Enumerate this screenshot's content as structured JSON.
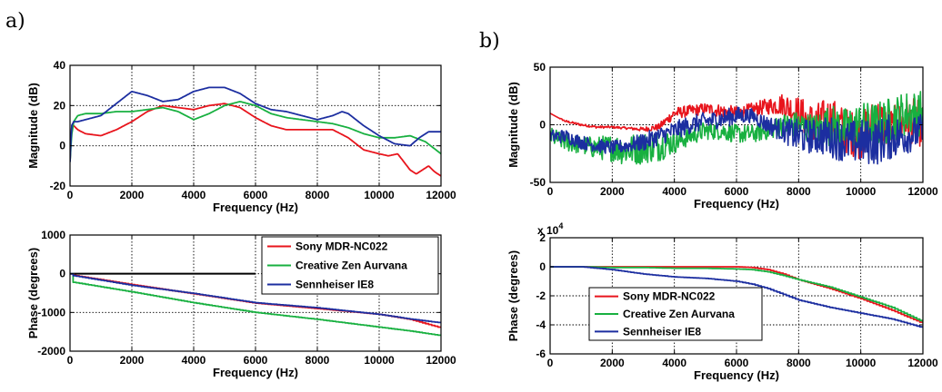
{
  "figure": {
    "panel_labels": [
      "a)",
      "b)"
    ]
  },
  "colors": {
    "Sony MDR-NC022": "#e8141c",
    "Creative Zen Aurvana": "#18b040",
    "Sennheiser IE8": "#1c2ea0"
  },
  "chart_data": [
    {
      "id": "a_mag",
      "panel": "a)",
      "type": "line",
      "xlabel": "Frequency (Hz)",
      "ylabel": "Magnitude (dB)",
      "xlim": [
        0,
        12000
      ],
      "ylim": [
        -20,
        40
      ],
      "xticks": [
        0,
        2000,
        4000,
        6000,
        8000,
        10000,
        12000
      ],
      "yticks": [
        -20,
        0,
        20,
        40
      ],
      "grid": true,
      "legend": false,
      "series": [
        {
          "name": "Sony MDR-NC022",
          "x": [
            0,
            50,
            120,
            250,
            500,
            1000,
            1500,
            2000,
            2500,
            3000,
            3500,
            4000,
            4500,
            5000,
            5500,
            6000,
            6500,
            7000,
            7500,
            8000,
            8500,
            9000,
            9500,
            10000,
            10300,
            10600,
            11000,
            11200,
            11400,
            11600,
            11800,
            12000
          ],
          "y": [
            -8,
            10,
            10,
            8,
            6,
            5,
            8,
            12,
            17,
            20,
            19,
            18,
            20,
            21,
            19,
            14,
            10,
            8,
            8,
            8,
            8,
            4,
            -2,
            -4,
            -5,
            -4,
            -12,
            -14,
            -12,
            -10,
            -13,
            -15
          ]
        },
        {
          "name": "Creative Zen Aurvana",
          "x": [
            0,
            50,
            120,
            250,
            500,
            1000,
            1500,
            2000,
            2500,
            3000,
            3500,
            4000,
            4500,
            5000,
            5500,
            6000,
            6500,
            7000,
            7500,
            8000,
            8500,
            9000,
            9500,
            10000,
            10500,
            11000,
            11500,
            12000
          ],
          "y": [
            -8,
            5,
            12,
            15,
            16,
            16,
            17,
            17,
            18,
            19,
            17,
            13,
            16,
            20,
            22,
            20,
            16,
            14,
            13,
            12,
            11,
            9,
            6,
            4,
            4,
            5,
            2,
            -4
          ]
        },
        {
          "name": "Sennheiser IE8",
          "x": [
            0,
            50,
            120,
            250,
            500,
            1000,
            1500,
            2000,
            2500,
            3000,
            3500,
            4000,
            4500,
            5000,
            5500,
            6000,
            6500,
            7000,
            7500,
            8000,
            8500,
            8800,
            9000,
            9500,
            10000,
            10500,
            11000,
            11300,
            11600,
            12000
          ],
          "y": [
            -8,
            10,
            12,
            12,
            13,
            15,
            21,
            27,
            25,
            22,
            23,
            27,
            29,
            29,
            26,
            21,
            18,
            17,
            15,
            13,
            15,
            17,
            16,
            10,
            5,
            1,
            0,
            4,
            7,
            7
          ]
        }
      ]
    },
    {
      "id": "a_phase",
      "panel": "a)",
      "type": "line",
      "xlabel": "Frequency (Hz)",
      "ylabel": "Phase (degrees)",
      "xlim": [
        0,
        12000
      ],
      "ylim": [
        -2000,
        1000
      ],
      "xticks": [
        0,
        2000,
        4000,
        6000,
        8000,
        10000,
        12000
      ],
      "yticks": [
        -2000,
        -1000,
        0,
        1000
      ],
      "grid": true,
      "legend": "top-right",
      "hline": {
        "y": 0,
        "x0": 0,
        "x1": 6000
      },
      "series": [
        {
          "name": "Sony MDR-NC022",
          "x": [
            0,
            100,
            2000,
            4000,
            6000,
            8000,
            10000,
            11000,
            12000
          ],
          "y": [
            0,
            -40,
            -280,
            -520,
            -760,
            -900,
            -1050,
            -1180,
            -1400
          ]
        },
        {
          "name": "Creative Zen Aurvana",
          "x": [
            0,
            100,
            2000,
            4000,
            6000,
            8000,
            10000,
            11000,
            12000
          ],
          "y": [
            0,
            -220,
            -470,
            -750,
            -1000,
            -1180,
            -1380,
            -1480,
            -1600
          ]
        },
        {
          "name": "Sennheiser IE8",
          "x": [
            0,
            100,
            2000,
            4000,
            6000,
            8000,
            10000,
            11000,
            12000
          ],
          "y": [
            0,
            -50,
            -300,
            -510,
            -750,
            -880,
            -1050,
            -1170,
            -1270
          ]
        }
      ]
    },
    {
      "id": "b_mag",
      "panel": "b)",
      "type": "line",
      "xlabel": "Frequency (Hz)",
      "ylabel": "Magnitude (dB)",
      "xlim": [
        0,
        12000
      ],
      "ylim": [
        -50,
        50
      ],
      "xticks": [
        0,
        2000,
        4000,
        6000,
        8000,
        10000,
        12000
      ],
      "yticks": [
        -50,
        0,
        50
      ],
      "grid": true,
      "legend": false,
      "series": [
        {
          "name": "Sony MDR-NC022",
          "x": [
            0,
            200,
            500,
            1000,
            1500,
            2000,
            2500,
            3000,
            3500,
            4000,
            4500,
            5000,
            5500,
            6000,
            6500,
            7000,
            7500,
            8000,
            8500,
            9000,
            9500,
            10000,
            10500,
            11000,
            11500,
            12000
          ],
          "y": [
            10,
            7,
            3,
            0,
            -2,
            -2,
            -3,
            -4,
            -2,
            10,
            12,
            14,
            12,
            10,
            13,
            16,
            18,
            10,
            0,
            5,
            -5,
            -10,
            5,
            -5,
            5,
            0
          ],
          "noise": [
            0,
            0,
            1,
            1,
            1,
            1,
            1,
            2,
            3,
            5,
            5,
            5,
            6,
            6,
            6,
            7,
            10,
            15,
            18,
            20,
            20,
            20,
            20,
            20,
            20,
            20
          ]
        },
        {
          "name": "Creative Zen Aurvana",
          "x": [
            0,
            200,
            500,
            1000,
            1500,
            2000,
            2500,
            3000,
            3500,
            4000,
            4500,
            5000,
            5500,
            6000,
            6500,
            7000,
            7500,
            8000,
            8500,
            9000,
            9500,
            10000,
            10500,
            11000,
            11500,
            12000
          ],
          "y": [
            -10,
            -12,
            -15,
            -18,
            -20,
            -20,
            -22,
            -20,
            -18,
            -15,
            -10,
            -5,
            -5,
            -8,
            -8,
            -5,
            0,
            0,
            -5,
            0,
            -5,
            0,
            0,
            5,
            10,
            10
          ],
          "noise": [
            8,
            8,
            8,
            8,
            10,
            12,
            14,
            14,
            14,
            10,
            8,
            8,
            8,
            8,
            8,
            8,
            10,
            12,
            15,
            18,
            20,
            20,
            20,
            20,
            20,
            20
          ]
        },
        {
          "name": "Sennheiser IE8",
          "x": [
            0,
            200,
            500,
            1000,
            1500,
            2000,
            2500,
            3000,
            3500,
            4000,
            4500,
            5000,
            5500,
            6000,
            6500,
            7000,
            7500,
            8000,
            8500,
            9000,
            9500,
            10000,
            10500,
            11000,
            11500,
            12000
          ],
          "y": [
            -10,
            -10,
            -10,
            -15,
            -18,
            -20,
            -18,
            -15,
            -10,
            -5,
            0,
            3,
            5,
            8,
            8,
            0,
            -5,
            -10,
            -10,
            -10,
            -15,
            -15,
            -15,
            -10,
            -10,
            -5
          ],
          "noise": [
            6,
            6,
            6,
            6,
            6,
            6,
            6,
            8,
            8,
            8,
            8,
            8,
            8,
            8,
            6,
            8,
            10,
            15,
            15,
            18,
            18,
            20,
            20,
            20,
            15,
            15
          ]
        }
      ]
    },
    {
      "id": "b_phase",
      "panel": "b)",
      "type": "line",
      "xlabel": "Frequency (Hz)",
      "ylabel": "Phase (degrees)",
      "xlim": [
        0,
        12000
      ],
      "ylim": [
        -6,
        2
      ],
      "y_multiplier": "x 10",
      "y_multiplier_exp": "4",
      "xticks": [
        0,
        2000,
        4000,
        6000,
        8000,
        10000,
        12000
      ],
      "yticks": [
        -6,
        -4,
        -2,
        0,
        2
      ],
      "grid": true,
      "legend": "bottom-left",
      "series": [
        {
          "name": "Sony MDR-NC022",
          "x": [
            0,
            1000,
            2000,
            3000,
            4000,
            5000,
            6000,
            6500,
            7000,
            7500,
            8000,
            9000,
            10000,
            11000,
            12000
          ],
          "y": [
            0,
            0,
            0,
            0,
            0,
            0,
            0,
            -0.05,
            -0.2,
            -0.5,
            -0.9,
            -1.5,
            -2.2,
            -3.0,
            -3.9
          ]
        },
        {
          "name": "Creative Zen Aurvana",
          "x": [
            0,
            1000,
            2000,
            3000,
            4000,
            5000,
            6000,
            6500,
            7000,
            7500,
            8000,
            9000,
            10000,
            11000,
            12000
          ],
          "y": [
            0,
            0,
            -0.05,
            -0.05,
            -0.1,
            -0.1,
            -0.15,
            -0.2,
            -0.35,
            -0.6,
            -0.9,
            -1.4,
            -2.1,
            -2.8,
            -3.8
          ]
        },
        {
          "name": "Sennheiser IE8",
          "x": [
            0,
            1000,
            2000,
            3000,
            4000,
            5000,
            6000,
            6500,
            7000,
            7500,
            8000,
            9000,
            10000,
            11000,
            12000
          ],
          "y": [
            0,
            0,
            -0.2,
            -0.5,
            -0.7,
            -0.8,
            -1.0,
            -1.2,
            -1.5,
            -1.9,
            -2.3,
            -2.8,
            -3.2,
            -3.6,
            -4.2
          ]
        }
      ]
    }
  ]
}
